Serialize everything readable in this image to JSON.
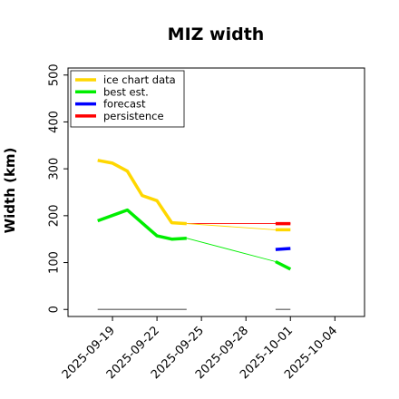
{
  "chart_data": {
    "type": "line",
    "title": "MIZ width",
    "ylabel": "Width (km)",
    "xlabel": "",
    "ylim": [
      -15,
      515
    ],
    "xlim": [
      "2025-09-16",
      "2025-10-06"
    ],
    "grid": false,
    "legend_position": "top-left",
    "yticks": [
      0,
      100,
      200,
      300,
      400,
      500
    ],
    "xticks": [
      "2025-09-19",
      "2025-09-22",
      "2025-09-25",
      "2025-09-28",
      "2025-10-01",
      "2025-10-04"
    ],
    "highlighted_xtick": "2025-09-25",
    "highlight_color": "#228B22",
    "series": [
      {
        "name": "ice chart data",
        "color": "#FFD700",
        "points": [
          {
            "x": "2025-09-18",
            "y": 318
          },
          {
            "x": "2025-09-19",
            "y": 312
          },
          {
            "x": "2025-09-20",
            "y": 295
          },
          {
            "x": "2025-09-21",
            "y": 243
          },
          {
            "x": "2025-09-22",
            "y": 232
          },
          {
            "x": "2025-09-23",
            "y": 185
          },
          {
            "x": "2025-09-24",
            "y": 183
          }
        ]
      },
      {
        "name": "best est.",
        "color": "#00EE00",
        "points": [
          {
            "x": "2025-09-18",
            "y": 189
          },
          {
            "x": "2025-09-20",
            "y": 212
          },
          {
            "x": "2025-09-22",
            "y": 157
          },
          {
            "x": "2025-09-23",
            "y": 150
          },
          {
            "x": "2025-09-24",
            "y": 152
          }
        ]
      },
      {
        "name": "forecast",
        "color": "#0000FF",
        "points": [
          {
            "x": "2025-09-30",
            "y": 128
          },
          {
            "x": "2025-10-01",
            "y": 130
          }
        ]
      },
      {
        "name": "persistence",
        "color": "#FF0000",
        "points": [
          {
            "x": "2025-09-30",
            "y": 183
          },
          {
            "x": "2025-10-01",
            "y": 183
          }
        ]
      }
    ],
    "extras": {
      "ice_chart_tail": {
        "color": "#FFD700",
        "points": [
          {
            "x": "2025-09-24",
            "y": 183
          },
          {
            "x": "2025-09-30",
            "y": 170
          },
          {
            "x": "2025-10-01",
            "y": 170
          }
        ]
      },
      "best_est_tail": {
        "color": "#00EE00",
        "points": [
          {
            "x": "2025-09-24",
            "y": 152
          },
          {
            "x": "2025-09-30",
            "y": 102
          },
          {
            "x": "2025-10-01",
            "y": 86
          }
        ]
      },
      "persistence_line": {
        "color": "#FF0000",
        "points": [
          {
            "x": "2025-09-24",
            "y": 183
          },
          {
            "x": "2025-10-01",
            "y": 183
          }
        ]
      },
      "baseline_segments": {
        "color": "#808080",
        "y": 0,
        "ranges": [
          [
            "2025-09-18",
            "2025-09-24"
          ],
          [
            "2025-09-30",
            "2025-10-01"
          ]
        ]
      }
    }
  }
}
